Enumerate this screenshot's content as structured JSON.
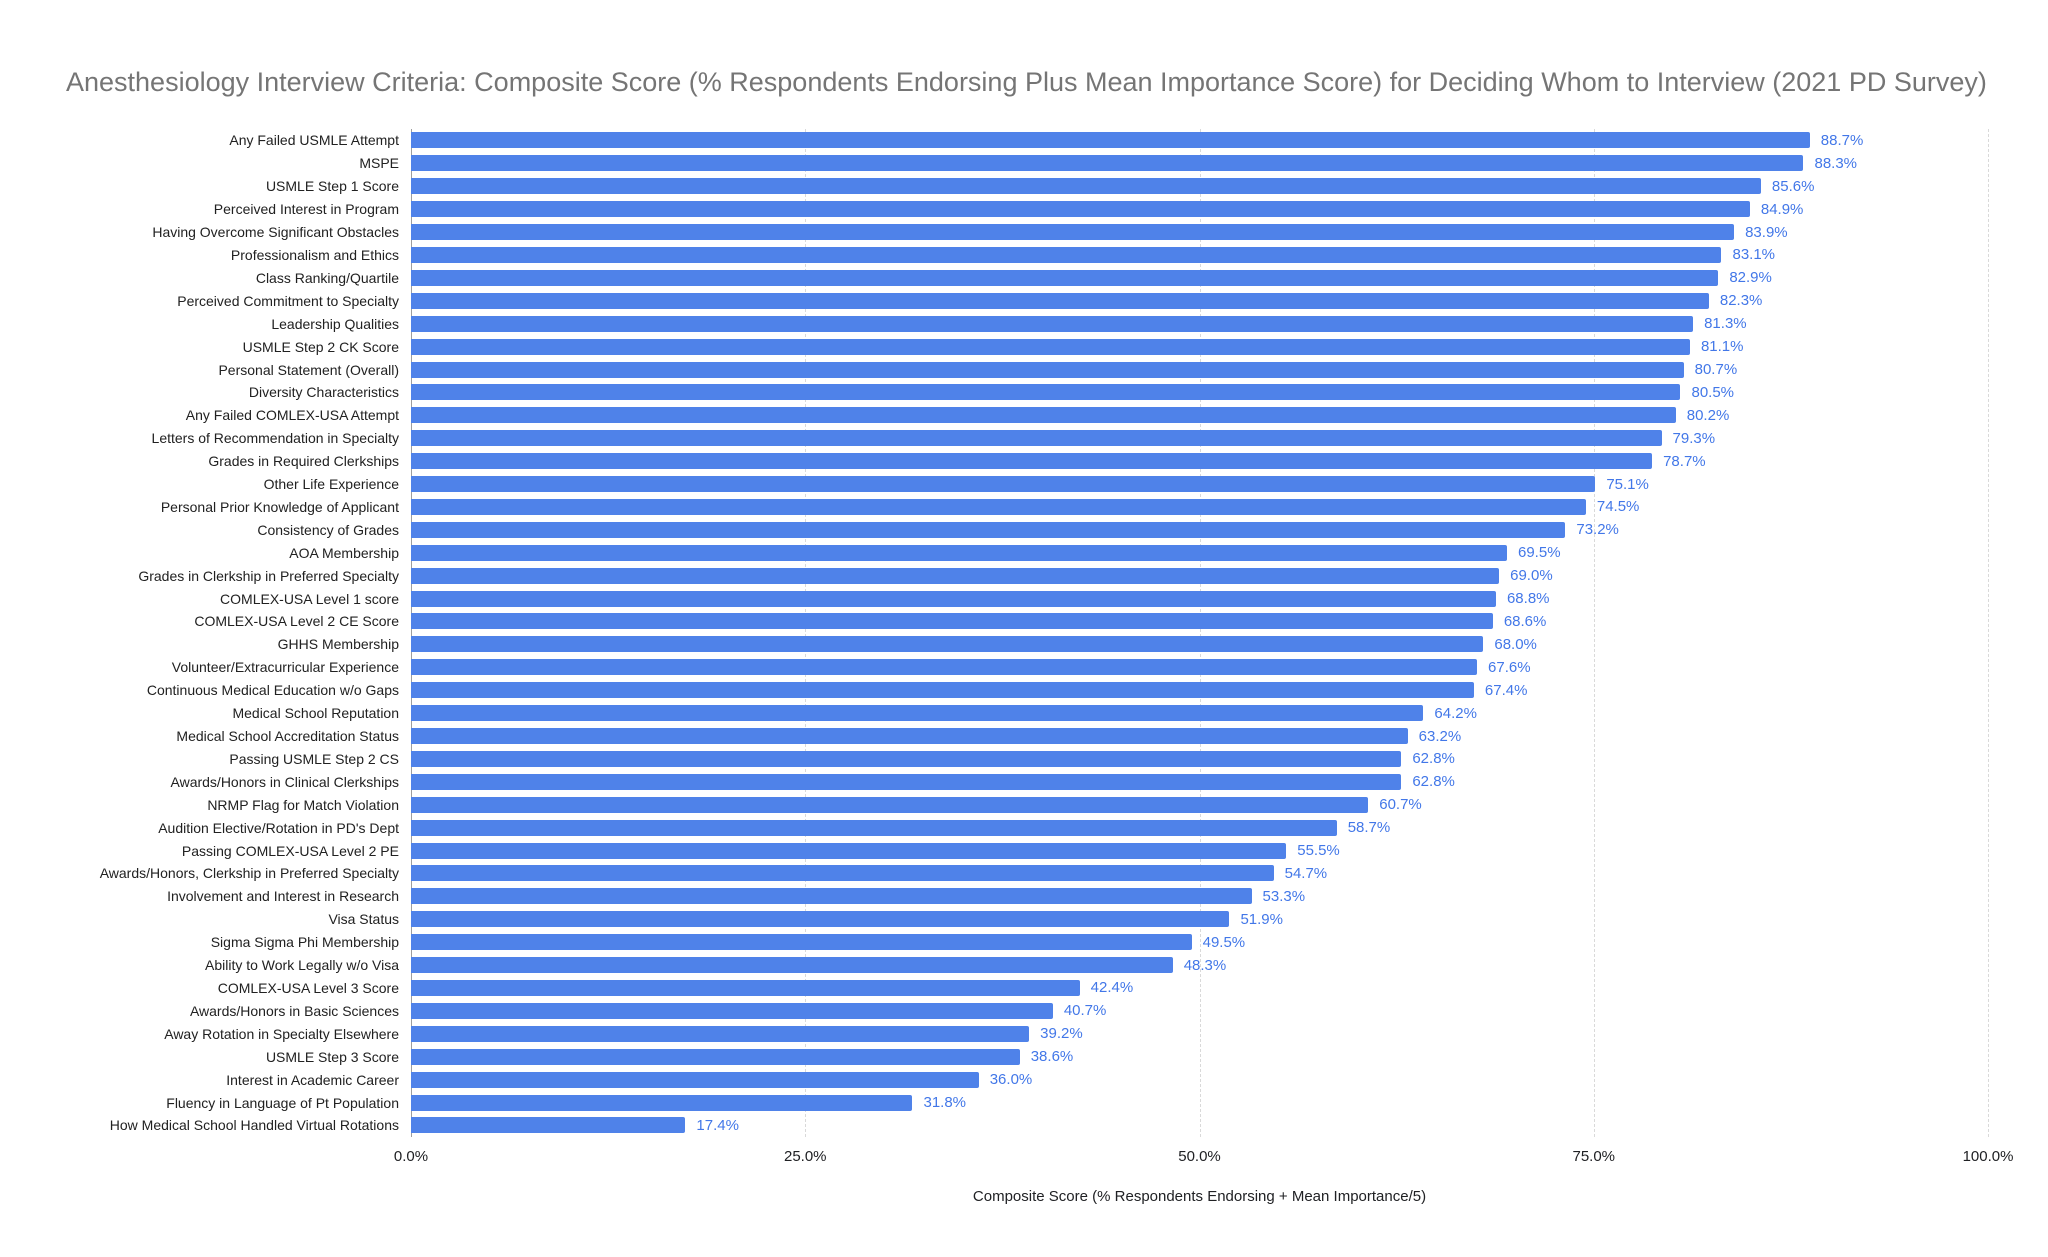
{
  "title": "Anesthesiology Interview Criteria: Composite Score (% Respondents Endorsing Plus Mean Importance Score) for Deciding Whom to Interview (2021 PD Survey)",
  "colors": {
    "bar": "#4f82e9",
    "value_label": "#4277e8",
    "title_text": "#757575",
    "gridline": "#d9d9d9",
    "axis_line": "#9e9e9e",
    "category_label": "#212121"
  },
  "chart_data": {
    "type": "bar",
    "orientation": "horizontal",
    "title": "Anesthesiology Interview Criteria: Composite Score (% Respondents Endorsing Plus Mean Importance Score) for Deciding Whom to Interview (2021 PD Survey)",
    "xlabel": "Composite Score (% Respondents Endorsing + Mean Importance/5)",
    "ylabel": "",
    "xlim": [
      0,
      100
    ],
    "grid": true,
    "legend": false,
    "x_tick_labels": [
      "0.0%",
      "25.0%",
      "50.0%",
      "75.0%",
      "100.0%"
    ],
    "x_tick_values": [
      0,
      25,
      50,
      75,
      100
    ],
    "value_label_suffix": "%",
    "categories": [
      "Any Failed USMLE Attempt",
      "MSPE",
      "USMLE Step 1 Score",
      "Perceived Interest in Program",
      "Having Overcome Significant Obstacles",
      "Professionalism and Ethics",
      "Class Ranking/Quartile",
      "Perceived Commitment to Specialty",
      "Leadership Qualities",
      "USMLE Step 2 CK Score",
      "Personal Statement (Overall)",
      "Diversity Characteristics",
      "Any Failed COMLEX-USA Attempt",
      "Letters of Recommendation in Specialty",
      "Grades in Required Clerkships",
      "Other Life Experience",
      "Personal Prior Knowledge of Applicant",
      "Consistency of Grades",
      "AOA Membership",
      "Grades in Clerkship in Preferred Specialty",
      "COMLEX-USA Level 1 score",
      "COMLEX-USA Level 2 CE Score",
      "GHHS Membership",
      "Volunteer/Extracurricular Experience",
      "Continuous Medical Education w/o Gaps",
      "Medical School Reputation",
      "Medical School Accreditation Status",
      "Passing USMLE Step 2 CS",
      "Awards/Honors in Clinical Clerkships",
      "NRMP Flag for Match Violation",
      "Audition Elective/Rotation in PD's Dept",
      "Passing COMLEX-USA Level 2 PE",
      "Awards/Honors, Clerkship in Preferred Specialty",
      "Involvement and Interest in Research",
      "Visa Status",
      "Sigma Sigma Phi Membership",
      "Ability to Work Legally w/o Visa",
      "COMLEX-USA Level 3 Score",
      "Awards/Honors in Basic Sciences",
      "Away Rotation in Specialty Elsewhere",
      "USMLE Step 3 Score",
      "Interest in Academic Career",
      "Fluency in Language of Pt Population",
      "How Medical School Handled Virtual Rotations"
    ],
    "values": [
      88.7,
      88.3,
      85.6,
      84.9,
      83.9,
      83.1,
      82.9,
      82.3,
      81.3,
      81.1,
      80.7,
      80.5,
      80.2,
      79.3,
      78.7,
      75.1,
      74.5,
      73.2,
      69.5,
      69.0,
      68.8,
      68.6,
      68.0,
      67.6,
      67.4,
      64.2,
      63.2,
      62.8,
      62.8,
      60.7,
      58.7,
      55.5,
      54.7,
      53.3,
      51.9,
      49.5,
      48.3,
      42.4,
      40.7,
      39.2,
      38.6,
      36.0,
      31.8,
      17.4
    ]
  }
}
